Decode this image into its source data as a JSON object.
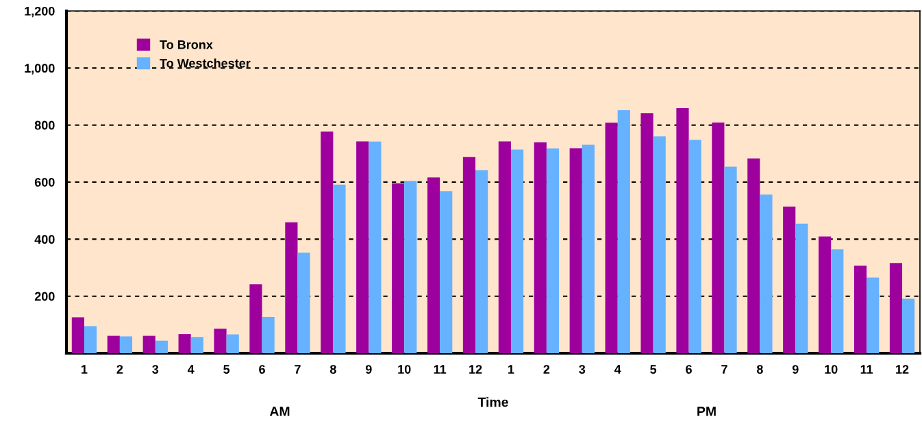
{
  "chart_data": {
    "type": "bar",
    "xlabel": "Time",
    "categories": [
      "1",
      "2",
      "3",
      "4",
      "5",
      "6",
      "7",
      "8",
      "9",
      "10",
      "11",
      "12",
      "1",
      "2",
      "3",
      "4",
      "5",
      "6",
      "7",
      "8",
      "9",
      "10",
      "11",
      "12"
    ],
    "series": [
      {
        "name": "To Bronx",
        "color": "#9e009e",
        "values": [
          126,
          61,
          61,
          67,
          86,
          242,
          459,
          777,
          743,
          596,
          616,
          688,
          743,
          739,
          719,
          808,
          842,
          859,
          809,
          683,
          514,
          409,
          307,
          316
        ]
      },
      {
        "name": "To Westchester",
        "color": "#66b2ff",
        "values": [
          95,
          59,
          44,
          57,
          66,
          127,
          353,
          591,
          742,
          604,
          568,
          642,
          714,
          718,
          731,
          852,
          760,
          748,
          654,
          556,
          454,
          364,
          265,
          191
        ]
      }
    ],
    "ylim": [
      0,
      1200
    ],
    "yticks": [
      {
        "value": 200,
        "label": "200"
      },
      {
        "value": 400,
        "label": "400"
      },
      {
        "value": 600,
        "label": "600"
      },
      {
        "value": 800,
        "label": "800"
      },
      {
        "value": 1000,
        "label": "1,000"
      },
      {
        "value": 1200,
        "label": "1,200"
      }
    ],
    "grid": "y",
    "legend": "top left",
    "annotations": [
      "AM",
      "PM"
    ]
  }
}
